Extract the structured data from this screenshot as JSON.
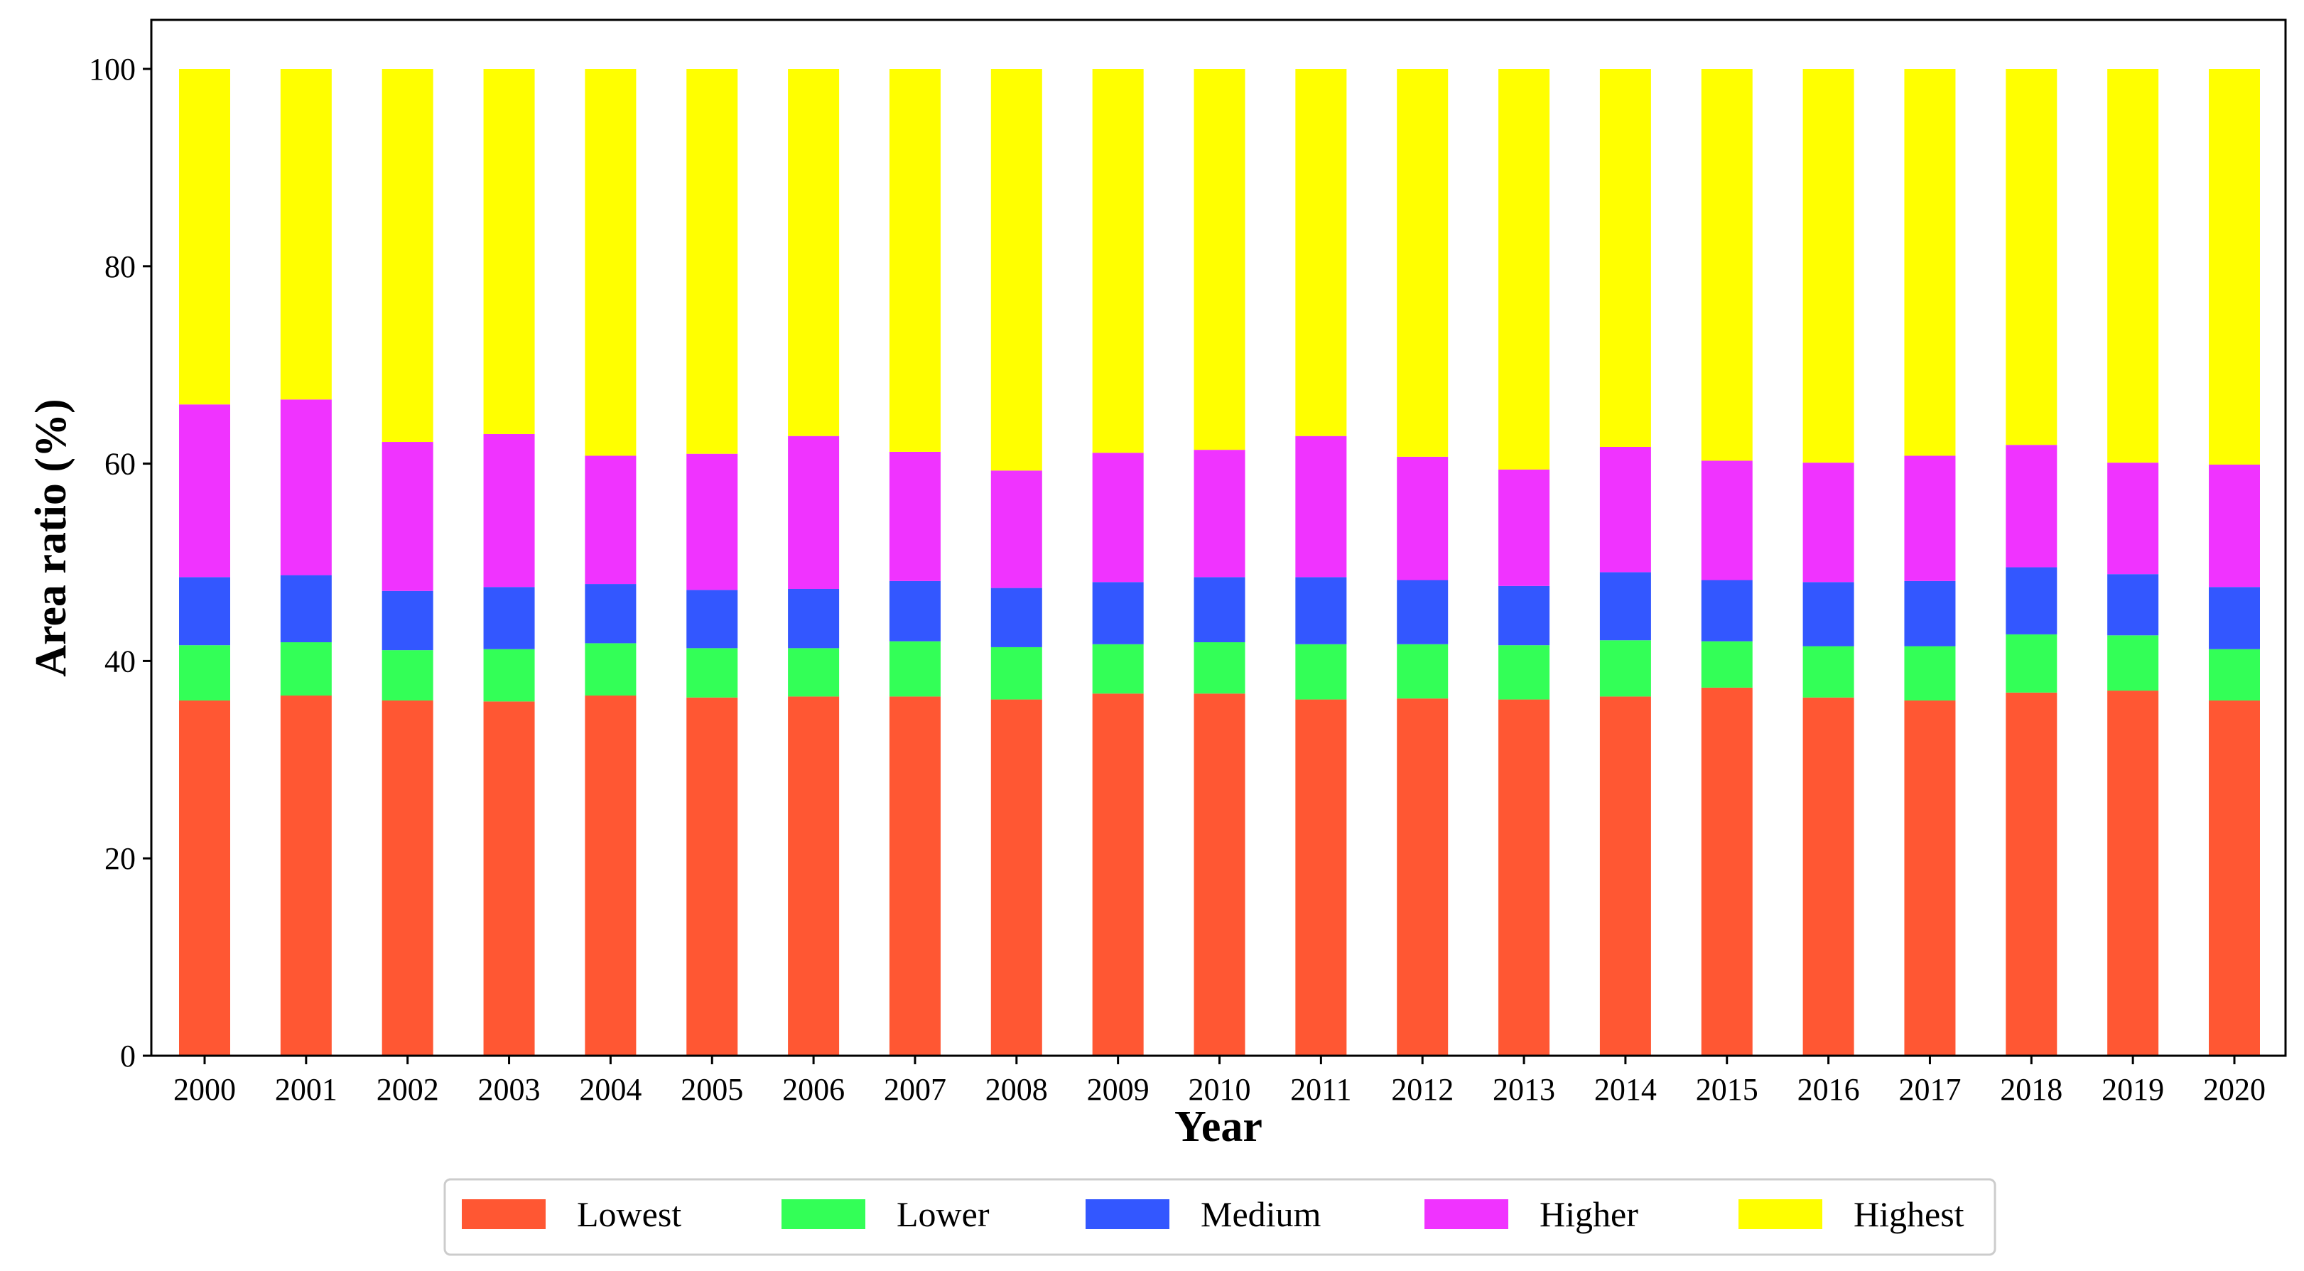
{
  "chart_data": {
    "type": "bar",
    "stacked": true,
    "title": "",
    "xlabel": "Year",
    "ylabel": "Area ratio (%)",
    "ylim": [
      0,
      105
    ],
    "yticks": [
      0,
      20,
      40,
      60,
      80,
      100
    ],
    "grid": false,
    "legend_position": "bottom-center",
    "categories": [
      "2000",
      "2001",
      "2002",
      "2003",
      "2004",
      "2005",
      "2006",
      "2007",
      "2008",
      "2009",
      "2010",
      "2011",
      "2012",
      "2013",
      "2014",
      "2015",
      "2016",
      "2017",
      "2018",
      "2019",
      "2020"
    ],
    "series": [
      {
        "name": "Lowest",
        "color": "#FF5733",
        "values": [
          36.0,
          36.5,
          36.0,
          35.9,
          36.5,
          36.3,
          36.4,
          36.4,
          36.1,
          36.7,
          36.7,
          36.1,
          36.2,
          36.1,
          36.4,
          37.3,
          36.3,
          36.0,
          36.8,
          37.0,
          36.0
        ]
      },
      {
        "name": "Lower",
        "color": "#33FF57",
        "values": [
          5.6,
          5.4,
          5.1,
          5.3,
          5.3,
          5.0,
          4.9,
          5.6,
          5.3,
          5.0,
          5.2,
          5.6,
          5.5,
          5.5,
          5.7,
          4.7,
          5.2,
          5.5,
          5.9,
          5.6,
          5.2
        ]
      },
      {
        "name": "Medium",
        "color": "#3357FF",
        "values": [
          6.9,
          6.8,
          6.0,
          6.3,
          6.0,
          5.9,
          6.0,
          6.1,
          6.0,
          6.3,
          6.6,
          6.8,
          6.5,
          6.0,
          6.9,
          6.2,
          6.5,
          6.6,
          6.8,
          6.2,
          6.3
        ]
      },
      {
        "name": "Higher",
        "color": "#F033FF",
        "values": [
          17.5,
          17.8,
          15.1,
          15.5,
          13.0,
          13.8,
          15.5,
          13.1,
          11.9,
          13.1,
          12.9,
          14.3,
          12.5,
          11.8,
          12.7,
          12.1,
          12.1,
          12.7,
          12.4,
          11.3,
          12.4
        ]
      },
      {
        "name": "Highest",
        "color": "#FFFF00",
        "values": [
          34.0,
          33.5,
          37.8,
          37.0,
          39.2,
          39.0,
          37.2,
          38.8,
          40.7,
          38.9,
          38.6,
          37.2,
          39.3,
          40.6,
          38.3,
          39.7,
          39.9,
          39.2,
          38.1,
          39.9,
          40.1
        ]
      }
    ]
  }
}
